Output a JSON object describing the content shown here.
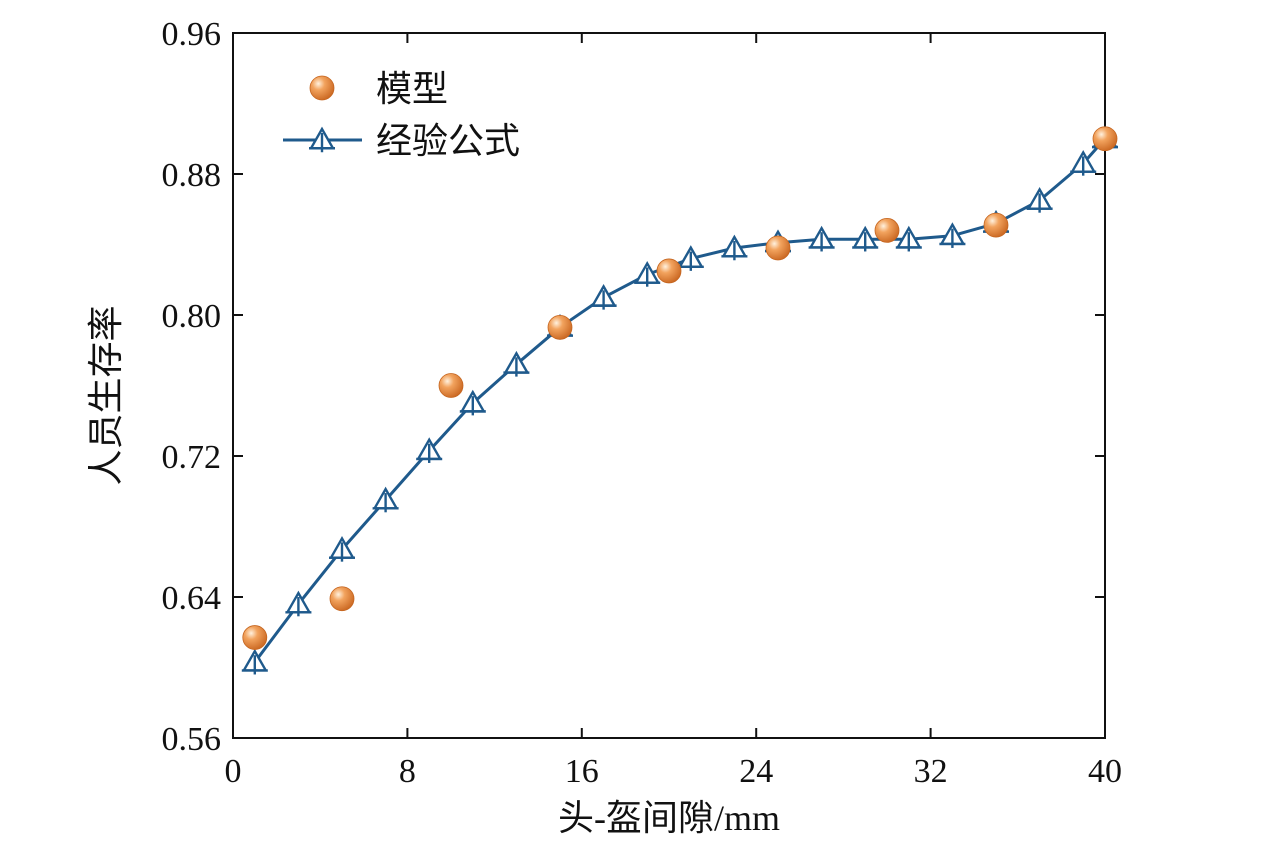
{
  "chart_data": {
    "type": "line",
    "title": "",
    "xlabel": "头-盔间隙/mm",
    "ylabel": "人员生存率",
    "xlim": [
      0,
      40
    ],
    "ylim": [
      0.56,
      0.96
    ],
    "xticks": [
      0,
      8,
      16,
      24,
      32,
      40
    ],
    "yticks": [
      0.56,
      0.64,
      0.72,
      0.8,
      0.88,
      0.96
    ],
    "xtick_labels": [
      "0",
      "8",
      "16",
      "24",
      "32",
      "40"
    ],
    "ytick_labels": [
      "0.56",
      "0.64",
      "0.72",
      "0.80",
      "0.88",
      "0.96"
    ],
    "grid": false,
    "legend_position": "top-left",
    "series": [
      {
        "name": "模型",
        "style": "scatter",
        "color": "#E8863A",
        "marker": "sphere",
        "x": [
          1,
          5,
          10,
          15,
          20,
          25,
          30,
          35,
          40
        ],
        "y": [
          0.617,
          0.639,
          0.76,
          0.793,
          0.825,
          0.838,
          0.848,
          0.851,
          0.9
        ]
      },
      {
        "name": "经验公式",
        "style": "line",
        "color": "#1F5A8C",
        "marker": "triangle-plus",
        "x": [
          1,
          3,
          5,
          7,
          9,
          11,
          13,
          15,
          17,
          19,
          21,
          23,
          25,
          27,
          29,
          31,
          33,
          35,
          37,
          39,
          40
        ],
        "y": [
          0.603,
          0.636,
          0.667,
          0.695,
          0.723,
          0.75,
          0.772,
          0.793,
          0.81,
          0.823,
          0.832,
          0.838,
          0.841,
          0.843,
          0.843,
          0.843,
          0.845,
          0.852,
          0.865,
          0.886,
          0.9
        ]
      }
    ]
  }
}
